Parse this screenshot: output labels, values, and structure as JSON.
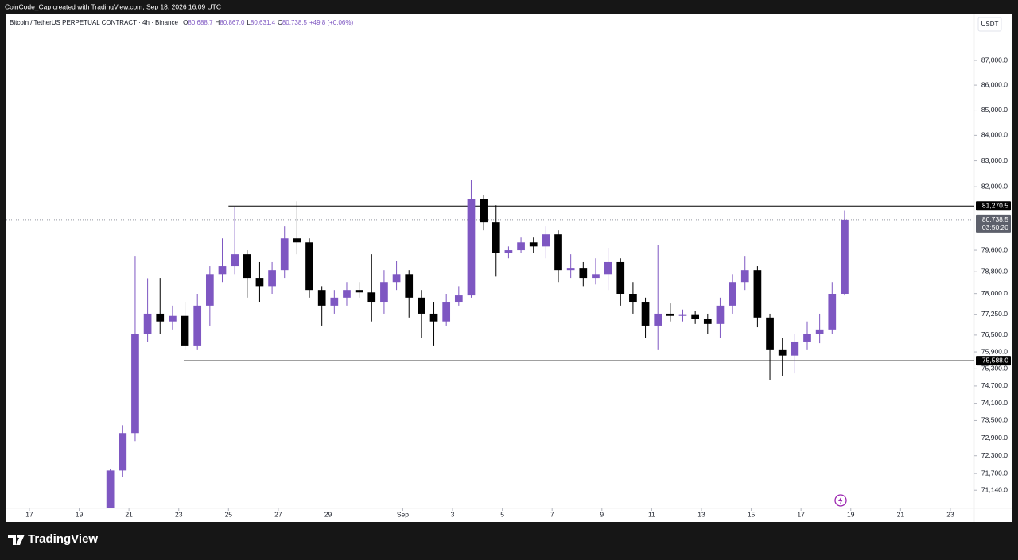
{
  "header": {
    "attribution": "CoinCode_Cap created with TradingView.com, Sep 18, 2026 16:09 UTC"
  },
  "legend": {
    "symbol": "Bitcoin / TetherUS PERPETUAL CONTRACT · 4h · Binance",
    "items": [
      {
        "key": "O",
        "value": "80,688.7"
      },
      {
        "key": "H",
        "value": "80,867.0"
      },
      {
        "key": "L",
        "value": "80,631.4"
      },
      {
        "key": "C",
        "value": "80,738.5"
      }
    ],
    "change": "+49.8 (+0.06%)"
  },
  "currency": "USDT",
  "chart_data": {
    "type": "candlestick",
    "log": true,
    "up_color": "#7e57c2",
    "down_color": "#000000",
    "x": [
      20.25,
      20.75,
      21.25,
      21.75,
      22.25,
      22.75,
      23.25,
      23.75,
      24.25,
      24.75,
      25.25,
      25.75,
      26.25,
      26.75,
      27.25,
      27.75,
      28.25,
      28.75,
      29.25,
      29.75,
      30.25,
      30.75,
      31.25,
      31.75,
      32.25,
      32.75,
      33.25,
      33.75,
      34.25,
      34.75,
      35.25,
      35.75,
      36.25,
      36.75,
      37.25,
      37.75,
      38.25,
      38.75,
      39.25,
      39.75,
      40.25,
      40.75,
      41.25,
      41.75,
      42.25,
      42.75,
      43.25,
      43.75,
      44.25,
      44.75,
      45.25,
      45.75,
      46.25,
      46.75,
      47.25,
      47.75,
      48.25,
      48.75,
      49.25,
      49.75
    ],
    "open": [
      70540,
      71800,
      73070,
      76550,
      77270,
      76990,
      77190,
      76130,
      77560,
      78710,
      79010,
      79450,
      78570,
      78270,
      78860,
      80040,
      79890,
      78130,
      77560,
      77850,
      78130,
      78040,
      77700,
      78420,
      78710,
      77850,
      77270,
      76990,
      77700,
      77930,
      81540,
      80640,
      79510,
      79600,
      79890,
      79740,
      80190,
      78860,
      78920,
      78570,
      78710,
      79160,
      77990,
      77700,
      76840,
      77270,
      77190,
      77250,
      77070,
      76900,
      77560,
      78420,
      78860,
      77130,
      75990,
      75770,
      76270,
      76550,
      76700,
      77990
    ],
    "high": [
      71860,
      73340,
      79390,
      78560,
      78570,
      77560,
      77700,
      77990,
      79010,
      80040,
      81240,
      79600,
      79160,
      79160,
      80490,
      81450,
      80040,
      78270,
      78130,
      78420,
      78420,
      79450,
      78860,
      79210,
      78860,
      78130,
      77700,
      77990,
      78270,
      82280,
      81700,
      81300,
      79740,
      80100,
      80100,
      80490,
      80340,
      79450,
      79160,
      79300,
      79690,
      79300,
      78420,
      77850,
      79810,
      77640,
      77420,
      77360,
      77270,
      77850,
      78710,
      79390,
      79010,
      77270,
      76410,
      76550,
      76990,
      77270,
      78420,
      81080
    ],
    "low": [
      70540,
      71590,
      72800,
      76270,
      76550,
      76700,
      75990,
      75990,
      76840,
      78420,
      78710,
      77850,
      77700,
      77990,
      78570,
      79450,
      77850,
      76840,
      77270,
      77560,
      77850,
      76990,
      77270,
      78130,
      77130,
      76410,
      76130,
      76840,
      77560,
      77850,
      80340,
      78620,
      79300,
      79510,
      79510,
      79300,
      78420,
      78570,
      78270,
      78330,
      78130,
      77560,
      77270,
      76410,
      75990,
      76990,
      76990,
      76900,
      76550,
      76410,
      77270,
      78130,
      76780,
      74920,
      75060,
      75140,
      75990,
      76210,
      76550,
      77930
    ],
    "close": [
      71800,
      73070,
      76550,
      77270,
      76990,
      77190,
      76130,
      77560,
      78710,
      79010,
      79450,
      78570,
      78270,
      78860,
      80040,
      79890,
      78130,
      77560,
      77850,
      78130,
      78040,
      77700,
      78420,
      78710,
      77850,
      77270,
      76990,
      77700,
      77930,
      81540,
      80640,
      79510,
      79600,
      79890,
      79740,
      80190,
      78860,
      78920,
      78570,
      78710,
      79160,
      77990,
      77700,
      76840,
      77270,
      77190,
      77250,
      77070,
      76900,
      77560,
      78420,
      78860,
      77130,
      75990,
      75770,
      76270,
      76550,
      76700,
      77990,
      80738.5
    ],
    "xlim": [
      15.82,
      54.96
    ],
    "xticks": [
      17,
      19,
      21,
      23,
      25,
      27,
      29,
      {
        "value": 32,
        "label": "Sep"
      },
      {
        "value": 34,
        "label": "3"
      },
      {
        "value": 36,
        "label": "5"
      },
      {
        "value": 38,
        "label": "7"
      },
      {
        "value": 40,
        "label": "9"
      },
      {
        "value": 42,
        "label": "11"
      },
      {
        "value": 44,
        "label": "13"
      },
      {
        "value": 46,
        "label": "15"
      },
      {
        "value": 48,
        "label": "17"
      },
      {
        "value": 50,
        "label": "19"
      },
      {
        "value": 52,
        "label": "21"
      },
      {
        "value": 54,
        "label": "23"
      }
    ],
    "ylim": [
      70540,
      88930
    ],
    "yticks": [
      {
        "value": 87000,
        "label": "87,000.0"
      },
      {
        "value": 86000,
        "label": "86,000.0"
      },
      {
        "value": 85000,
        "label": "85,000.0"
      },
      {
        "value": 84000,
        "label": "84,000.0"
      },
      {
        "value": 83000,
        "label": "83,000.0"
      },
      {
        "value": 82000,
        "label": "82,000.0"
      },
      {
        "value": 79600,
        "label": "79,600.0"
      },
      {
        "value": 78800,
        "label": "78,800.0"
      },
      {
        "value": 78000,
        "label": "78,000.0"
      },
      {
        "value": 77250,
        "label": "77,250.0"
      },
      {
        "value": 76500,
        "label": "76,500.0"
      },
      {
        "value": 75900,
        "label": "75,900.0"
      },
      {
        "value": 75300,
        "label": "75,300.0"
      },
      {
        "value": 74700,
        "label": "74,700.0"
      },
      {
        "value": 74100,
        "label": "74,100.0"
      },
      {
        "value": 73500,
        "label": "73,500.0"
      },
      {
        "value": 72900,
        "label": "72,900.0"
      },
      {
        "value": 72300,
        "label": "72,300.0"
      },
      {
        "value": 71700,
        "label": "71,700.0"
      },
      {
        "value": 71140,
        "label": "71,140.0"
      }
    ],
    "levels": [
      {
        "value": 81270.5,
        "label": "81,270.5",
        "from": 25.0
      },
      {
        "value": 75588.0,
        "label": "75,588.0",
        "from": 23.2
      }
    ],
    "last_price": {
      "value": 80738.5,
      "label": "80,738.5",
      "countdown": "03:50:20"
    }
  },
  "footer": {
    "brand": "TradingView"
  }
}
